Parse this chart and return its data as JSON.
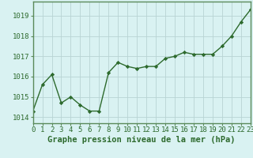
{
  "x": [
    0,
    1,
    2,
    3,
    4,
    5,
    6,
    7,
    8,
    9,
    10,
    11,
    12,
    13,
    14,
    15,
    16,
    17,
    18,
    19,
    20,
    21,
    22,
    23
  ],
  "y": [
    1014.3,
    1015.6,
    1016.1,
    1014.7,
    1015.0,
    1014.6,
    1014.3,
    1014.3,
    1016.2,
    1016.7,
    1016.5,
    1016.4,
    1016.5,
    1016.5,
    1016.9,
    1017.0,
    1017.2,
    1017.1,
    1017.1,
    1017.1,
    1017.5,
    1018.0,
    1018.7,
    1019.3
  ],
  "line_color": "#2d6a2d",
  "marker": "D",
  "marker_size": 2.2,
  "bg_color": "#d9f2f2",
  "grid_color": "#b8d4d4",
  "border_color": "#5a8a5a",
  "ylabel_ticks": [
    1014,
    1015,
    1016,
    1017,
    1018,
    1019
  ],
  "ylim": [
    1013.7,
    1019.7
  ],
  "xlabel": "Graphe pression niveau de la mer (hPa)",
  "xlabel_fontsize": 7.5,
  "tick_fontsize": 6.5,
  "line_width": 1.0
}
